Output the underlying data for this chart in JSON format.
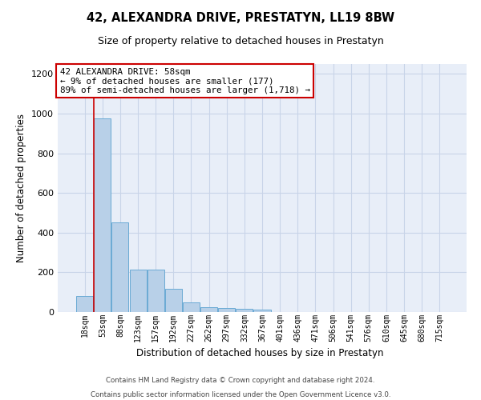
{
  "title": "42, ALEXANDRA DRIVE, PRESTATYN, LL19 8BW",
  "subtitle": "Size of property relative to detached houses in Prestatyn",
  "xlabel": "Distribution of detached houses by size in Prestatyn",
  "ylabel": "Number of detached properties",
  "categories": [
    "18sqm",
    "53sqm",
    "88sqm",
    "123sqm",
    "157sqm",
    "192sqm",
    "227sqm",
    "262sqm",
    "297sqm",
    "332sqm",
    "367sqm",
    "401sqm",
    "436sqm",
    "471sqm",
    "506sqm",
    "541sqm",
    "576sqm",
    "610sqm",
    "645sqm",
    "680sqm",
    "715sqm"
  ],
  "values": [
    80,
    975,
    450,
    215,
    215,
    118,
    47,
    25,
    22,
    18,
    12,
    0,
    0,
    0,
    0,
    0,
    0,
    0,
    0,
    0,
    0
  ],
  "bar_color": "#b8d0e8",
  "bar_edge_color": "#6aaad4",
  "grid_color": "#c8d4e8",
  "background_color": "#e8eef8",
  "vline_color": "#cc0000",
  "vline_x_index": 1,
  "annotation_text": "42 ALEXANDRA DRIVE: 58sqm\n← 9% of detached houses are smaller (177)\n89% of semi-detached houses are larger (1,718) →",
  "annotation_box_color": "#ffffff",
  "annotation_box_edge": "#cc0000",
  "ylim": [
    0,
    1250
  ],
  "yticks": [
    0,
    200,
    400,
    600,
    800,
    1000,
    1200
  ],
  "footer_line1": "Contains HM Land Registry data © Crown copyright and database right 2024.",
  "footer_line2": "Contains public sector information licensed under the Open Government Licence v3.0."
}
